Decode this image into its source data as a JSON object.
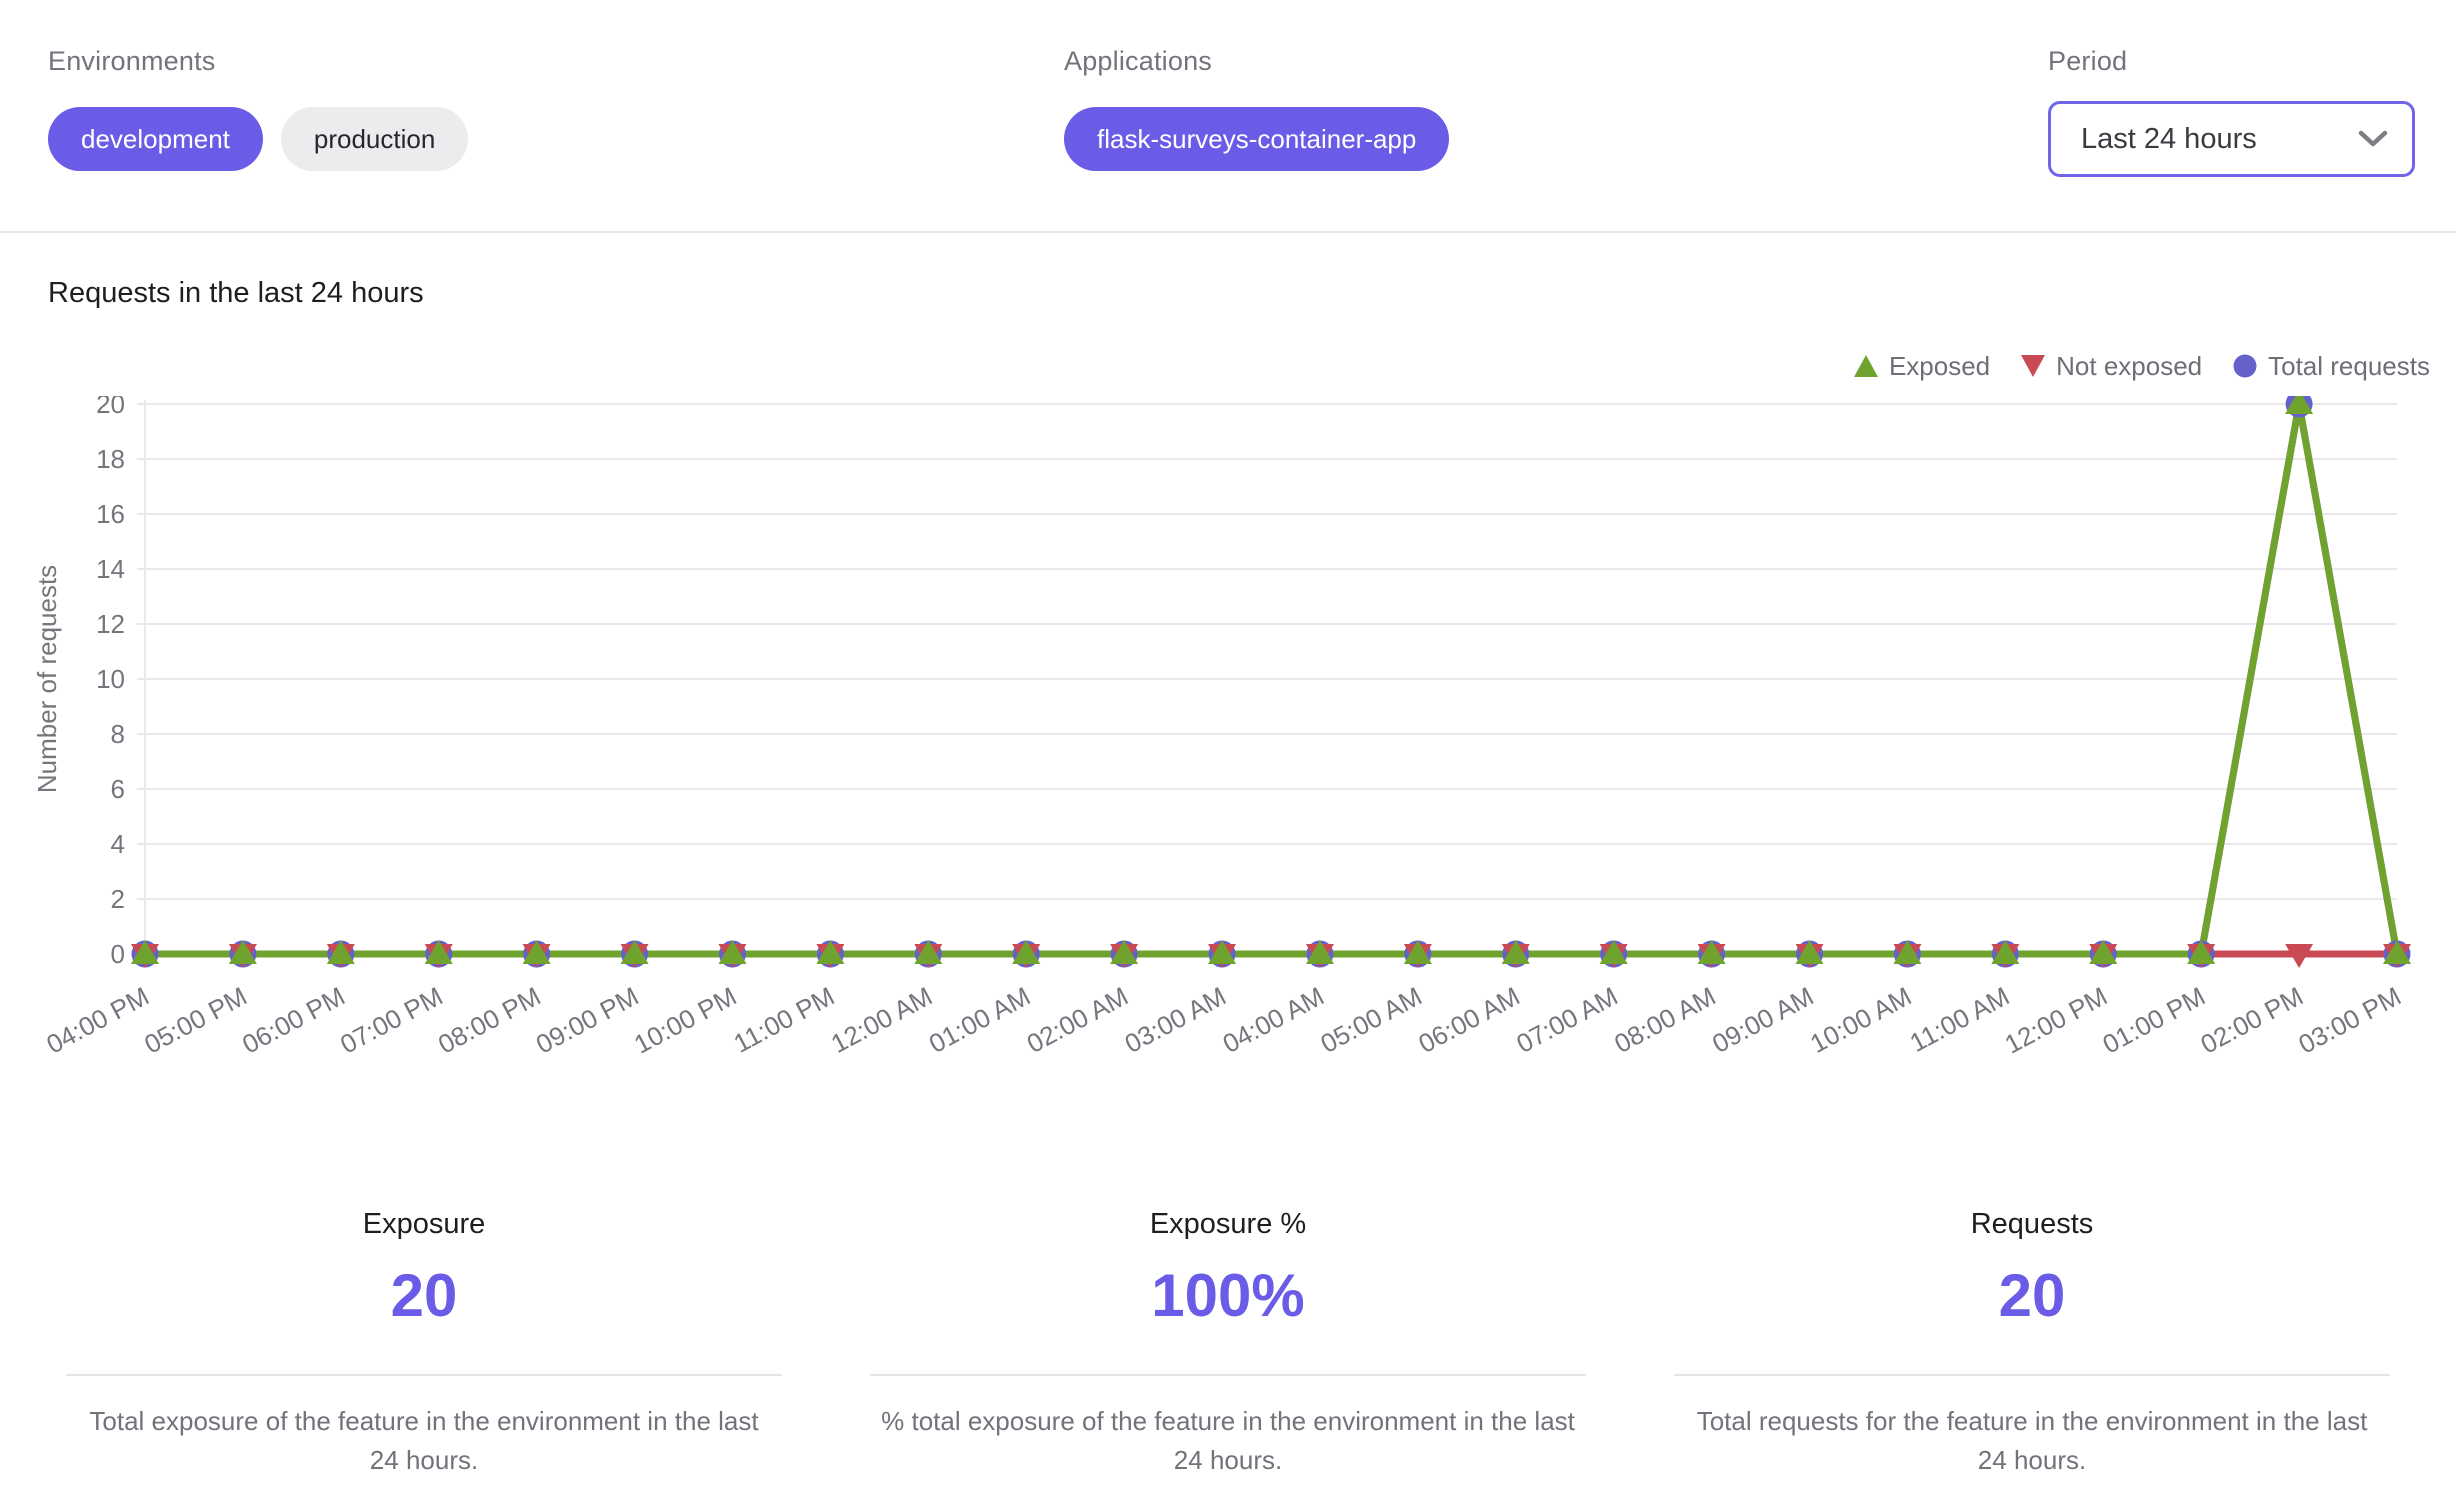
{
  "colors": {
    "accent": "#6a5ce6",
    "select-border": "#7165ea",
    "chip-inactive-bg": "#ececee"
  },
  "filters": {
    "environments": {
      "label": "Environments",
      "options": [
        {
          "label": "development",
          "selected": true
        },
        {
          "label": "production",
          "selected": false
        }
      ]
    },
    "applications": {
      "label": "Applications",
      "options": [
        {
          "label": "flask-surveys-container-app",
          "selected": true
        }
      ]
    },
    "period": {
      "label": "Period",
      "value": "Last 24 hours"
    }
  },
  "chart_data": {
    "type": "line",
    "title": "Requests in the last 24 hours",
    "xlabel": "",
    "ylabel": "Number of requests",
    "ylim": [
      0,
      20
    ],
    "ytick_step": 2,
    "grid": true,
    "legend_position": "top-right",
    "x": [
      "04:00 PM",
      "05:00 PM",
      "06:00 PM",
      "07:00 PM",
      "08:00 PM",
      "09:00 PM",
      "10:00 PM",
      "11:00 PM",
      "12:00 AM",
      "01:00 AM",
      "02:00 AM",
      "03:00 AM",
      "04:00 AM",
      "05:00 AM",
      "06:00 AM",
      "07:00 AM",
      "08:00 AM",
      "09:00 AM",
      "10:00 AM",
      "11:00 AM",
      "12:00 PM",
      "01:00 PM",
      "02:00 PM",
      "03:00 PM"
    ],
    "series": [
      {
        "name": "Exposed",
        "marker": "triangle-up",
        "color": "#70a32e",
        "values": [
          0,
          0,
          0,
          0,
          0,
          0,
          0,
          0,
          0,
          0,
          0,
          0,
          0,
          0,
          0,
          0,
          0,
          0,
          0,
          0,
          0,
          0,
          20,
          0
        ]
      },
      {
        "name": "Not exposed",
        "marker": "triangle-down",
        "color": "#c94a55",
        "values": [
          0,
          0,
          0,
          0,
          0,
          0,
          0,
          0,
          0,
          0,
          0,
          0,
          0,
          0,
          0,
          0,
          0,
          0,
          0,
          0,
          0,
          0,
          0,
          0
        ]
      },
      {
        "name": "Total requests",
        "marker": "circle",
        "color": "#6561cb",
        "values": [
          0,
          0,
          0,
          0,
          0,
          0,
          0,
          0,
          0,
          0,
          0,
          0,
          0,
          0,
          0,
          0,
          0,
          0,
          0,
          0,
          0,
          0,
          20,
          0
        ]
      }
    ]
  },
  "stats": [
    {
      "title": "Exposure",
      "value": "20",
      "description": "Total exposure of the feature in the environment in the last 24 hours."
    },
    {
      "title": "Exposure %",
      "value": "100%",
      "description": "% total exposure of the feature in the environment in the last 24 hours."
    },
    {
      "title": "Requests",
      "value": "20",
      "description": "Total requests for the feature in the environment in the last 24 hours."
    }
  ]
}
